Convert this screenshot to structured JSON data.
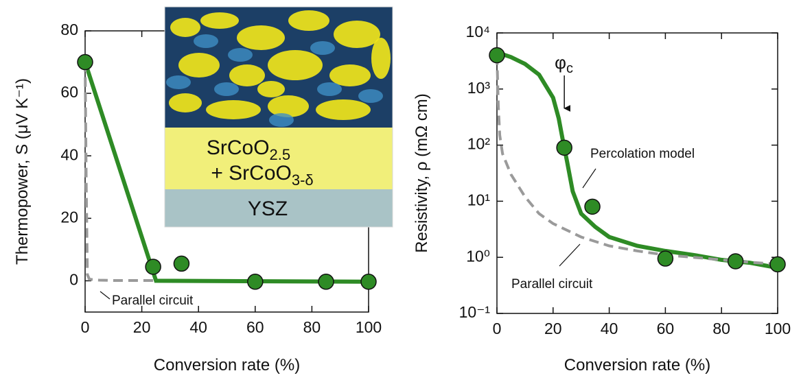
{
  "chart_data": [
    {
      "type": "scatter",
      "xlabel": "Conversion rate (%)",
      "ylabel": "Thermopower, S (μV K⁻¹)",
      "xlim": [
        0,
        100
      ],
      "xticks": [
        0,
        20,
        40,
        60,
        80,
        100
      ],
      "ylim": [
        -10,
        80
      ],
      "yticks": [
        0,
        20,
        40,
        60,
        80
      ],
      "ylog": false,
      "points": {
        "color": "#2e8b25",
        "x": [
          0,
          24,
          34,
          60,
          85,
          100
        ],
        "y": [
          70,
          4.5,
          5.5,
          -0.3,
          -0.3,
          -0.3
        ]
      },
      "curves": [
        {
          "color": "#2e8b25",
          "dash": false,
          "x": [
            0,
            25,
            100
          ],
          "y": [
            70,
            0,
            -0.3
          ]
        },
        {
          "label": "Parallel circuit",
          "color": "#9a9a9a",
          "dash": true,
          "x": [
            0,
            0.4,
            0.8,
            1.5,
            5,
            10,
            25
          ],
          "y": [
            70,
            30,
            2,
            0.5,
            0.2,
            0.1,
            0.1
          ]
        }
      ],
      "inset": {
        "film": [
          "SrCoO",
          "2.5",
          "+ SrCoO",
          "3-δ"
        ],
        "substrate": "YSZ"
      }
    },
    {
      "type": "scatter",
      "xlabel": "Conversion rate (%)",
      "ylabel": "Resistivity, ρ (mΩ cm)",
      "xlim": [
        0,
        100
      ],
      "xticks": [
        0,
        20,
        40,
        60,
        80,
        100
      ],
      "ylim": [
        0.1,
        10000
      ],
      "ylog": true,
      "yticks": [
        {
          "value": 0.1,
          "label": "10⁻¹"
        },
        {
          "value": 1,
          "label": "10⁰"
        },
        {
          "value": 10,
          "label": "10¹"
        },
        {
          "value": 100,
          "label": "10²"
        },
        {
          "value": 1000,
          "label": "10³"
        },
        {
          "value": 10000,
          "label": "10⁴"
        }
      ],
      "points": {
        "color": "#2e8b25",
        "x": [
          0,
          24,
          34,
          60,
          85,
          100
        ],
        "y": [
          4000,
          90,
          8,
          0.95,
          0.85,
          0.75
        ]
      },
      "curves": [
        {
          "label": "Percolation model",
          "color": "#2e8b25",
          "dash": false,
          "x": [
            0,
            5,
            10,
            15,
            20,
            22,
            23.5,
            25,
            27,
            30,
            35,
            40,
            50,
            60,
            70,
            80,
            90,
            100
          ],
          "y": [
            4500,
            3700,
            2800,
            1800,
            700,
            300,
            120,
            50,
            15,
            6,
            3.5,
            2.3,
            1.6,
            1.3,
            1.1,
            0.9,
            0.8,
            0.65
          ]
        },
        {
          "label": "Parallel circuit",
          "color": "#9a9a9a",
          "dash": true,
          "x": [
            0,
            0.5,
            1,
            2,
            5,
            10,
            15,
            20,
            30,
            40,
            50,
            60,
            70,
            80,
            90,
            100
          ],
          "y": [
            4000,
            500,
            150,
            70,
            30,
            12,
            6,
            4,
            2.3,
            1.6,
            1.3,
            1.1,
            1.0,
            0.9,
            0.82,
            0.75
          ]
        }
      ],
      "arrow": {
        "x": 24,
        "label": [
          "φ",
          "c"
        ]
      }
    }
  ]
}
